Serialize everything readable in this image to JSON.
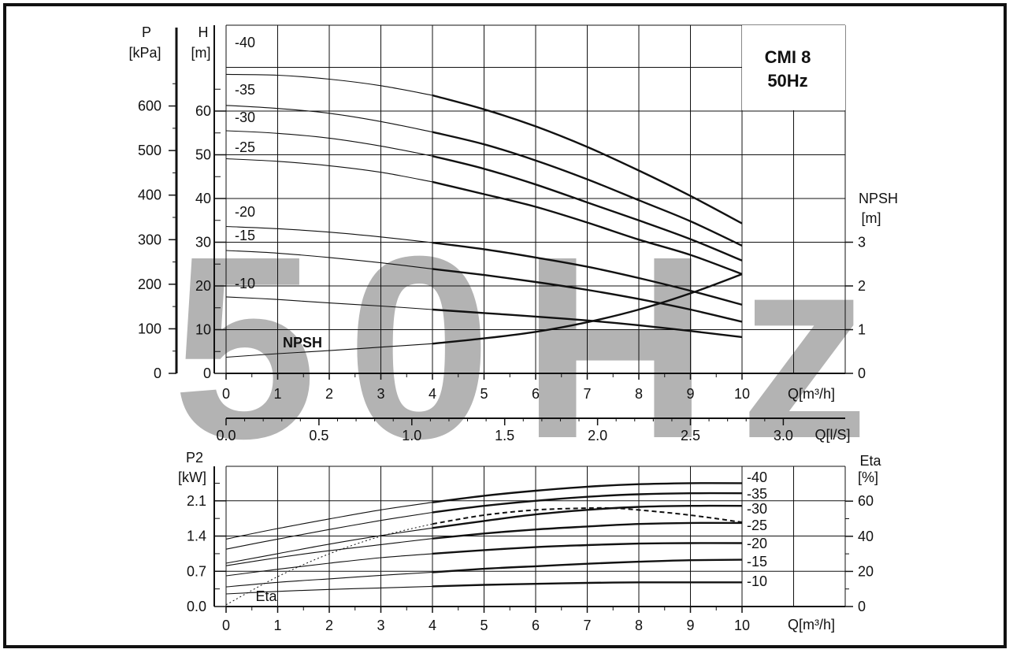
{
  "title_block": {
    "line1": "CMI 8",
    "line2": "50Hz"
  },
  "watermark": "50Hz",
  "colors": {
    "ink": "#111111",
    "watermark": "#b3b3b3"
  },
  "chart_data": [
    {
      "type": "line",
      "name": "head",
      "x_label": "Q[m³/h]",
      "x_ticks": [
        "0",
        "1",
        "2",
        "3",
        "4",
        "5",
        "6",
        "7",
        "8",
        "9",
        "10"
      ],
      "xlim": [
        0,
        10
      ],
      "y_left_label": [
        "H",
        "[m]"
      ],
      "y_left_ticks": [
        "0",
        "10",
        "20",
        "30",
        "40",
        "50",
        "60"
      ],
      "ylim": [
        0,
        70
      ],
      "y_pressure_label": [
        "P",
        "[kPa]"
      ],
      "y_pressure_ticks": [
        "0",
        "100",
        "200",
        "300",
        "400",
        "500",
        "600"
      ],
      "y_right_label": [
        "NPSH",
        "[m]"
      ],
      "y_right_ticks": [
        "0",
        "1",
        "2",
        "3"
      ],
      "secondary_x_label": "Q[l/S]",
      "secondary_x_ticks": [
        "0.0",
        "0.5",
        "1.0",
        "1.5",
        "2.0",
        "2.5",
        "3.0"
      ],
      "annotation": "NPSH",
      "x": [
        0,
        1,
        2,
        3,
        4,
        5,
        6,
        7,
        8,
        9,
        10
      ],
      "series": [
        {
          "name": "-40",
          "values": [
            68.4,
            68.2,
            67.3,
            65.8,
            63.6,
            60.4,
            56.5,
            51.8,
            46.4,
            40.6,
            34.3
          ]
        },
        {
          "name": "-35",
          "values": [
            61.3,
            60.6,
            59.5,
            57.6,
            55.2,
            52.4,
            48.7,
            44.4,
            39.6,
            34.8,
            29.2
          ]
        },
        {
          "name": "-30",
          "values": [
            55.5,
            54.9,
            53.8,
            52.0,
            49.7,
            46.8,
            43.2,
            39.1,
            35.0,
            30.7,
            25.8
          ]
        },
        {
          "name": "-25",
          "values": [
            49.1,
            48.5,
            47.5,
            46.0,
            43.8,
            41.0,
            38.1,
            34.5,
            30.6,
            27.1,
            22.7
          ]
        },
        {
          "name": "-20",
          "values": [
            33.6,
            33.1,
            32.3,
            31.2,
            29.9,
            28.4,
            26.5,
            24.4,
            21.8,
            18.9,
            15.7
          ]
        },
        {
          "name": "-15",
          "values": [
            28.1,
            27.5,
            26.5,
            25.3,
            23.9,
            22.5,
            20.9,
            19.1,
            17.0,
            14.6,
            11.8
          ]
        },
        {
          "name": "-10",
          "values": [
            17.5,
            16.9,
            16.1,
            15.4,
            14.6,
            13.8,
            13.0,
            12.1,
            11.0,
            9.7,
            8.3
          ]
        }
      ],
      "npsh": {
        "x": [
          0,
          1,
          2,
          3,
          4,
          5,
          6,
          7,
          8,
          9,
          10
        ],
        "values": [
          0.37,
          0.45,
          0.52,
          0.6,
          0.68,
          0.8,
          0.95,
          1.17,
          1.46,
          1.83,
          2.27
        ]
      }
    },
    {
      "type": "line",
      "name": "power",
      "x_label": "Q[m³/h]",
      "x_ticks": [
        "0",
        "1",
        "2",
        "3",
        "4",
        "5",
        "6",
        "7",
        "8",
        "9",
        "10"
      ],
      "xlim": [
        0,
        10
      ],
      "y_left_label": [
        "P2",
        "[kW]"
      ],
      "y_left_ticks": [
        "0.0",
        "0.7",
        "1.4",
        "2.1"
      ],
      "ylim": [
        0,
        2.5
      ],
      "y_right_label": [
        "Eta",
        "[%]"
      ],
      "y_right_ticks": [
        "0",
        "20",
        "40",
        "60"
      ],
      "eta_label": "Eta",
      "x": [
        0,
        1,
        2,
        3,
        4,
        5,
        6,
        7,
        8,
        9,
        10
      ],
      "series": [
        {
          "name": "-40",
          "values": [
            1.34,
            1.55,
            1.74,
            1.92,
            2.07,
            2.2,
            2.3,
            2.38,
            2.43,
            2.45,
            2.45
          ]
        },
        {
          "name": "-35",
          "values": [
            1.14,
            1.34,
            1.53,
            1.71,
            1.87,
            2.0,
            2.1,
            2.18,
            2.23,
            2.25,
            2.25
          ]
        },
        {
          "name": "-30",
          "values": [
            0.86,
            1.05,
            1.24,
            1.41,
            1.56,
            1.7,
            1.83,
            1.92,
            1.98,
            2.0,
            2.0
          ]
        },
        {
          "name": "-25",
          "values": [
            0.81,
            0.97,
            1.11,
            1.23,
            1.35,
            1.45,
            1.53,
            1.59,
            1.64,
            1.66,
            1.66
          ]
        },
        {
          "name": "-20",
          "values": [
            0.61,
            0.74,
            0.86,
            0.97,
            1.05,
            1.12,
            1.18,
            1.22,
            1.25,
            1.26,
            1.26
          ]
        },
        {
          "name": "-15",
          "values": [
            0.39,
            0.48,
            0.55,
            0.62,
            0.68,
            0.75,
            0.8,
            0.85,
            0.89,
            0.92,
            0.93
          ]
        },
        {
          "name": "-10",
          "values": [
            0.25,
            0.3,
            0.34,
            0.37,
            0.4,
            0.43,
            0.45,
            0.47,
            0.48,
            0.48,
            0.48
          ]
        }
      ],
      "eta": {
        "x": [
          0,
          1,
          2,
          3,
          4,
          5,
          6,
          7,
          7.5,
          8,
          9,
          10
        ],
        "values": [
          1,
          17,
          30,
          40,
          47,
          52,
          55,
          56,
          56,
          55,
          52,
          48
        ]
      }
    }
  ]
}
